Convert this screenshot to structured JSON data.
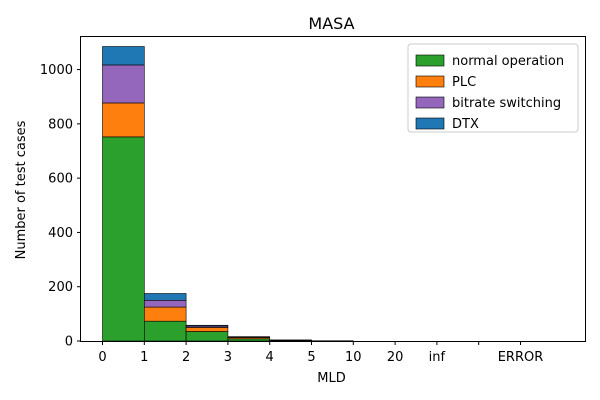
{
  "chart_data": {
    "type": "bar",
    "stacked": true,
    "title": "MASA",
    "xlabel": "MLD",
    "ylabel": "Number of test cases",
    "bins": [
      "0-1",
      "1-2",
      "2-3",
      "3-4",
      "4-5",
      "5-10",
      "10-20",
      "20-inf",
      "inf",
      "ERROR"
    ],
    "x_tick_labels": [
      "0",
      "1",
      "2",
      "3",
      "4",
      "5",
      "10",
      "20",
      "inf",
      "",
      "ERROR"
    ],
    "y_ticks": [
      0,
      200,
      400,
      600,
      800,
      1000
    ],
    "ylim": [
      0,
      1120
    ],
    "legend_position": "top-right",
    "grid": false,
    "series": [
      {
        "name": "normal operation",
        "color": "#2ca02c",
        "values": [
          752,
          73,
          35,
          8,
          2,
          1,
          0,
          0,
          0,
          0
        ]
      },
      {
        "name": "PLC",
        "color": "#ff7f0e",
        "values": [
          125,
          52,
          15,
          5,
          1,
          0,
          0,
          0,
          0,
          0
        ]
      },
      {
        "name": "bitrate switching",
        "color": "#9467bd",
        "values": [
          140,
          25,
          5,
          2,
          1,
          0,
          0,
          0,
          0,
          0
        ]
      },
      {
        "name": "DTX",
        "color": "#1f77b4",
        "values": [
          68,
          25,
          3,
          1,
          0,
          0,
          0,
          0,
          0,
          0
        ]
      }
    ]
  }
}
